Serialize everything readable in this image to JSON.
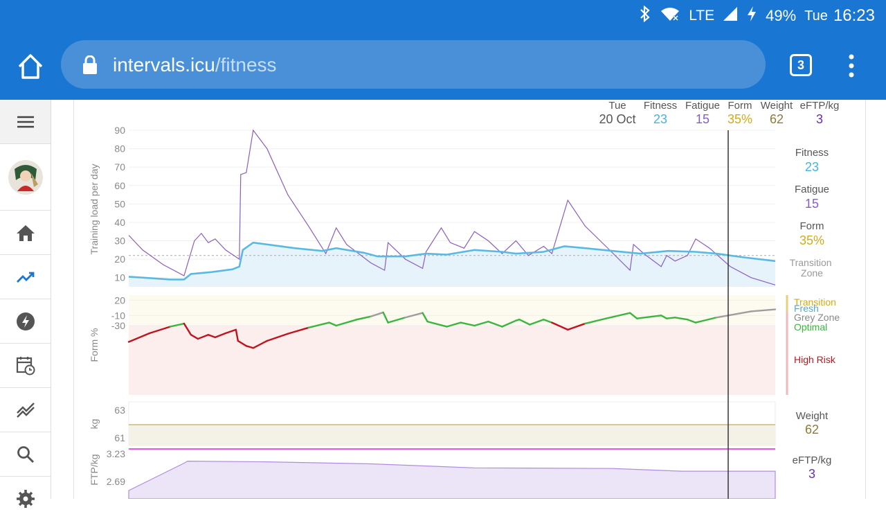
{
  "status": {
    "network": "LTE",
    "battery": "49%",
    "day": "Tue",
    "time": "16:23"
  },
  "browser": {
    "url_host": "intervals.icu",
    "url_path": "/fitness",
    "tab_count": "3"
  },
  "sidebar": {
    "items": [
      {
        "icon": "menu-icon"
      },
      {
        "icon": "avatar"
      },
      {
        "icon": "home-icon"
      },
      {
        "icon": "trend-icon"
      },
      {
        "icon": "bolt-icon"
      },
      {
        "icon": "calendar-clock-icon"
      },
      {
        "icon": "compare-lines-icon"
      },
      {
        "icon": "search-icon"
      },
      {
        "icon": "gear-icon"
      }
    ]
  },
  "header": {
    "date_day": "Tue",
    "date": "20 Oct",
    "fitness_label": "Fitness",
    "fitness_value": "23",
    "fatigue_label": "Fatigue",
    "fatigue_value": "15",
    "form_label": "Form",
    "form_value": "35%",
    "weight_label": "Weight",
    "weight_value": "62",
    "eftp_label": "eFTP/kg",
    "eftp_value": "3"
  },
  "right_panel": {
    "fitness_label": "Fitness",
    "fitness_value": "23",
    "fatigue_label": "Fatigue",
    "fatigue_value": "15",
    "form_label": "Form",
    "form_value": "35%",
    "zone_label": "Transition Zone",
    "zones": [
      "Transition",
      "Fresh",
      "Grey Zone",
      "Optimal",
      "High Risk"
    ],
    "weight_label": "Weight",
    "weight_value": "62",
    "eftp_label": "eFTP/kg",
    "eftp_value": "3"
  },
  "colors": {
    "fitness": "#45b4e0",
    "fatigue": "#8a5cc4",
    "form": "#d4a91a",
    "weight": "#8b7a3a",
    "eftp": "#6a2eb0",
    "high_risk": "#c0141c",
    "optimal": "#3ab53e",
    "grey": "#9e9e9e",
    "fresh": "#4da9d8",
    "transition": "#d4a91a"
  },
  "chart_data": [
    {
      "type": "line",
      "ylabel": "Training load per day",
      "ylim": [
        5,
        90
      ],
      "yticks": [
        10,
        20,
        30,
        40,
        50,
        60,
        70,
        80,
        90
      ],
      "transition_line": 22,
      "series": [
        {
          "name": "Fitness",
          "points": [
            [
              0,
              10.5
            ],
            [
              20,
              10
            ],
            [
              60,
              9
            ],
            [
              80,
              9
            ],
            [
              90,
              12
            ],
            [
              120,
              13
            ],
            [
              150,
              14.5
            ],
            [
              160,
              16
            ],
            [
              165,
              25
            ],
            [
              180,
              29
            ],
            [
              200,
              28
            ],
            [
              240,
              26
            ],
            [
              280,
              24.5
            ],
            [
              300,
              26
            ],
            [
              340,
              23.5
            ],
            [
              360,
              21.5
            ],
            [
              400,
              21.5
            ],
            [
              430,
              23
            ],
            [
              460,
              22.5
            ],
            [
              500,
              25
            ],
            [
              540,
              24
            ],
            [
              560,
              23
            ],
            [
              600,
              24
            ],
            [
              630,
              27
            ],
            [
              660,
              26
            ],
            [
              700,
              24.5
            ],
            [
              740,
              23
            ],
            [
              780,
              24.5
            ],
            [
              820,
              24
            ],
            [
              850,
              23
            ],
            [
              890,
              21
            ],
            [
              935,
              19
            ]
          ]
        },
        {
          "name": "Fatigue",
          "points": [
            [
              0,
              33
            ],
            [
              20,
              25
            ],
            [
              50,
              17
            ],
            [
              80,
              11
            ],
            [
              95,
              30
            ],
            [
              105,
              34
            ],
            [
              115,
              29
            ],
            [
              125,
              31
            ],
            [
              140,
              25
            ],
            [
              160,
              20
            ],
            [
              162,
              66
            ],
            [
              170,
              67
            ],
            [
              180,
              98
            ],
            [
              200,
              80
            ],
            [
              230,
              55
            ],
            [
              260,
              38
            ],
            [
              285,
              23
            ],
            [
              300,
              37
            ],
            [
              315,
              28
            ],
            [
              350,
              18
            ],
            [
              370,
              14
            ],
            [
              375,
              29
            ],
            [
              400,
              20
            ],
            [
              425,
              15
            ],
            [
              430,
              24
            ],
            [
              452,
              37
            ],
            [
              465,
              29
            ],
            [
              485,
              26
            ],
            [
              500,
              35
            ],
            [
              520,
              30
            ],
            [
              540,
              23
            ],
            [
              560,
              30
            ],
            [
              578,
              22
            ],
            [
              600,
              27
            ],
            [
              612,
              23
            ],
            [
              635,
              52
            ],
            [
              660,
              38
            ],
            [
              690,
              27
            ],
            [
              725,
              14
            ],
            [
              730,
              28
            ],
            [
              745,
              23
            ],
            [
              770,
              16
            ],
            [
              778,
              22
            ],
            [
              790,
              19
            ],
            [
              808,
              22
            ],
            [
              820,
              31
            ],
            [
              840,
              26
            ],
            [
              870,
              16
            ],
            [
              900,
              10
            ],
            [
              935,
              6
            ]
          ]
        }
      ]
    },
    {
      "type": "line",
      "ylabel": "Form %",
      "yticks": [
        20,
        -10,
        -30
      ],
      "ytick_labels": [
        "20",
        "-10",
        "-30"
      ],
      "zones": [
        "Transition",
        "Fresh",
        "Grey Zone",
        "Optimal",
        "High Risk"
      ],
      "series": [
        {
          "name": "Form",
          "points": [
            [
              0,
              -62
            ],
            [
              30,
              -45
            ],
            [
              60,
              -32
            ],
            [
              80,
              -26
            ],
            [
              90,
              -48
            ],
            [
              100,
              -56
            ],
            [
              115,
              -48
            ],
            [
              125,
              -53
            ],
            [
              140,
              -45
            ],
            [
              155,
              -38
            ],
            [
              158,
              -60
            ],
            [
              170,
              -70
            ],
            [
              180,
              -74
            ],
            [
              200,
              -60
            ],
            [
              230,
              -46
            ],
            [
              260,
              -34
            ],
            [
              290,
              -24
            ],
            [
              300,
              -30
            ],
            [
              330,
              -18
            ],
            [
              350,
              -12
            ],
            [
              368,
              -4
            ],
            [
              375,
              -24
            ],
            [
              400,
              -14
            ],
            [
              425,
              -5
            ],
            [
              432,
              -22
            ],
            [
              460,
              -32
            ],
            [
              480,
              -24
            ],
            [
              500,
              -30
            ],
            [
              520,
              -22
            ],
            [
              540,
              -32
            ],
            [
              560,
              -20
            ],
            [
              565,
              -18
            ],
            [
              580,
              -28
            ],
            [
              600,
              -18
            ],
            [
              612,
              -24
            ],
            [
              635,
              -38
            ],
            [
              660,
              -26
            ],
            [
              690,
              -16
            ],
            [
              725,
              -5
            ],
            [
              735,
              -16
            ],
            [
              770,
              -10
            ],
            [
              778,
              -16
            ],
            [
              790,
              -14
            ],
            [
              808,
              -18
            ],
            [
              820,
              -24
            ],
            [
              850,
              -14
            ],
            [
              900,
              -2
            ],
            [
              935,
              2
            ]
          ]
        }
      ]
    },
    {
      "type": "line",
      "ylabel": "kg",
      "yticks": [
        63,
        61
      ],
      "series": [
        {
          "name": "Weight",
          "value": 62
        }
      ]
    },
    {
      "type": "area",
      "ylabel": "FTP/kg",
      "yticks": [
        3.23,
        2.69
      ],
      "ylim": [
        2.69,
        3.23
      ],
      "series": [
        {
          "name": "eFTP/kg",
          "points": [
            [
              0,
              2.69
            ],
            [
              80,
              3.1
            ],
            [
              85,
              3.13
            ],
            [
              200,
              3.12
            ],
            [
              350,
              3.09
            ],
            [
              500,
              3.03
            ],
            [
              700,
              3.02
            ],
            [
              800,
              2.98
            ],
            [
              935,
              2.98
            ]
          ]
        }
      ]
    }
  ]
}
